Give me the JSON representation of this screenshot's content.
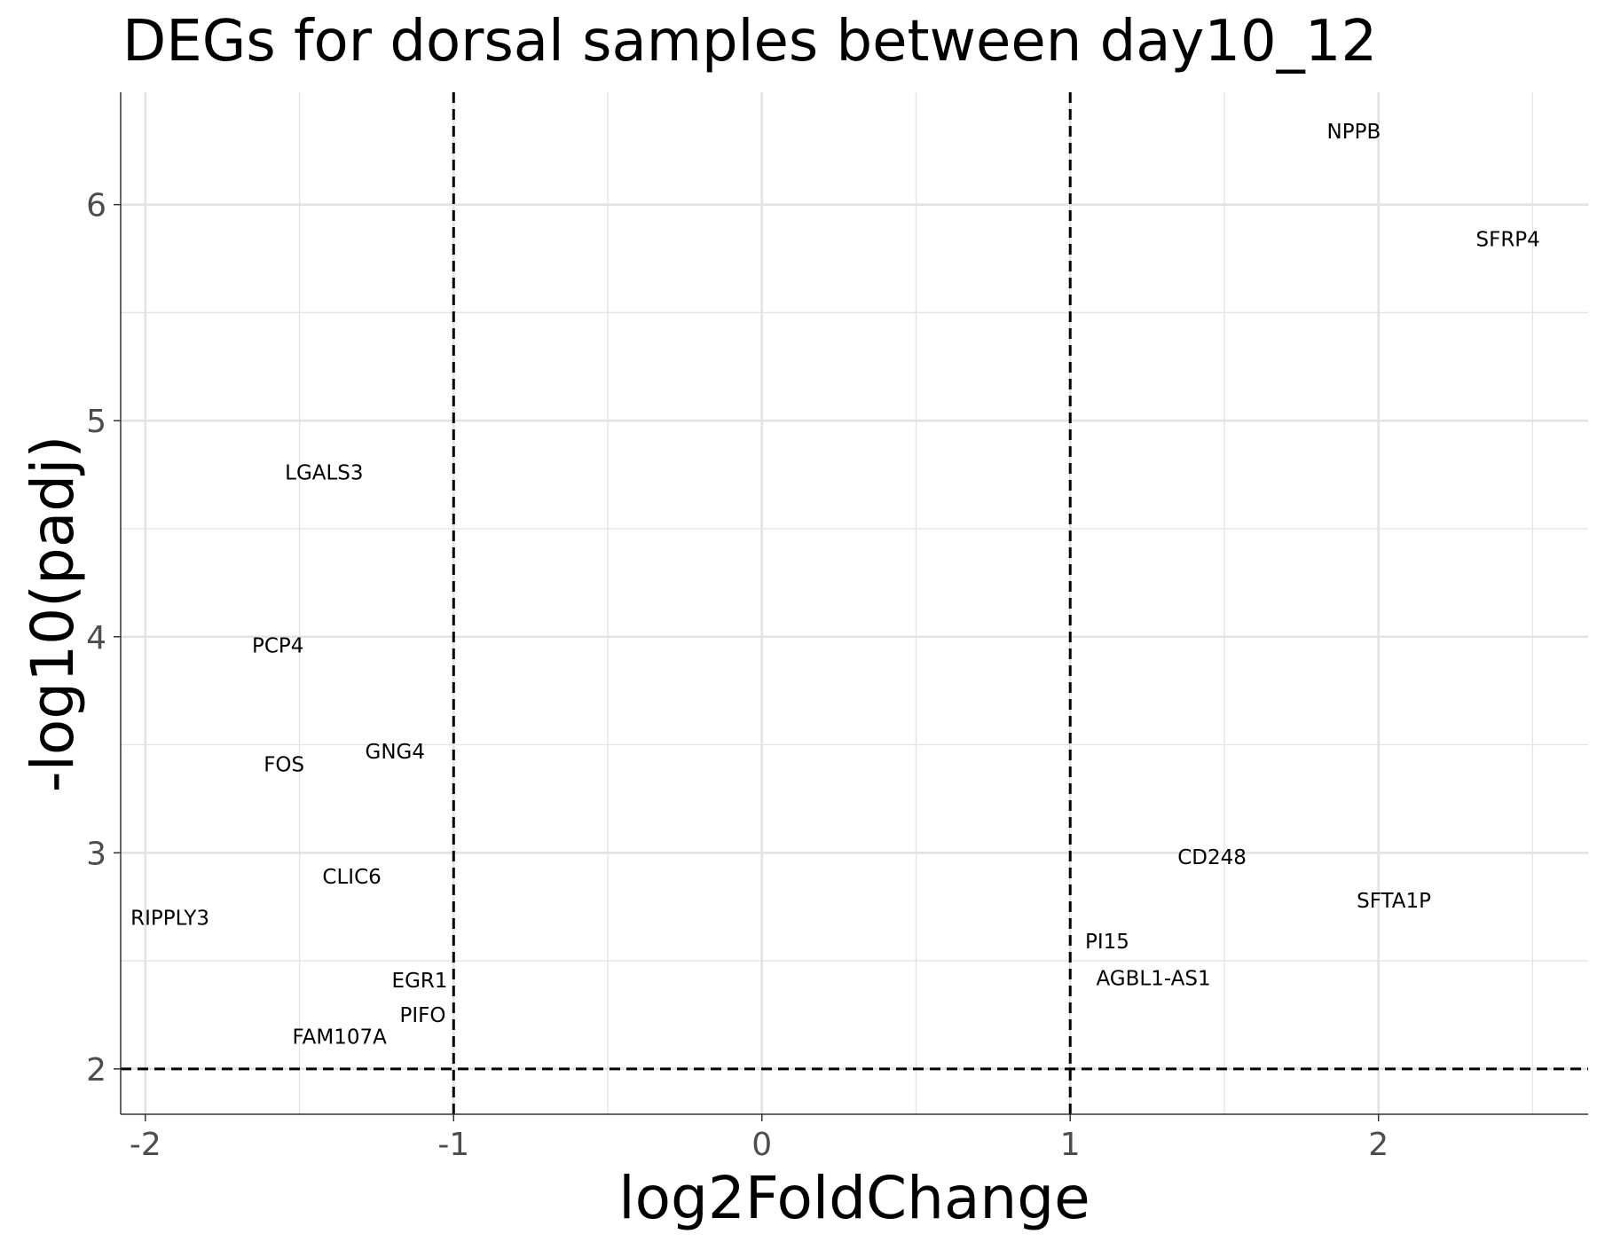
{
  "chart_data": {
    "type": "scatter",
    "title": "DEGs for dorsal samples between day10_12",
    "xlabel": "log2FoldChange",
    "ylabel": "-log10(padj)",
    "xlim": [
      -2.08,
      2.68
    ],
    "ylim": [
      1.79,
      6.52
    ],
    "x_ticks": [
      -2,
      -1,
      0,
      1,
      2
    ],
    "x_tick_labels": [
      "-2",
      "-1",
      "0",
      "1",
      "2"
    ],
    "y_ticks": [
      2,
      3,
      4,
      5,
      6
    ],
    "y_tick_labels": [
      "2",
      "3",
      "4",
      "5",
      "6"
    ],
    "x_minor_ticks": [
      -1.5,
      -0.5,
      0.5,
      1.5,
      2.5
    ],
    "y_minor_ticks": [
      2.5,
      3.5,
      4.5,
      5.5
    ],
    "grid": true,
    "reference_lines": {
      "vertical": [
        -1,
        1
      ],
      "horizontal": [
        2
      ]
    },
    "points": [
      {
        "label": "NPPB",
        "x": 1.92,
        "y": 6.34
      },
      {
        "label": "SFRP4",
        "x": 2.42,
        "y": 5.84
      },
      {
        "label": "LGALS3",
        "x": -1.42,
        "y": 4.76
      },
      {
        "label": "PCP4",
        "x": -1.57,
        "y": 3.96
      },
      {
        "label": "GNG4",
        "x": -1.19,
        "y": 3.47
      },
      {
        "label": "FOS",
        "x": -1.55,
        "y": 3.41
      },
      {
        "label": "CD248",
        "x": 1.46,
        "y": 2.98
      },
      {
        "label": "CLIC6",
        "x": -1.33,
        "y": 2.89
      },
      {
        "label": "SFTA1P",
        "x": 2.05,
        "y": 2.78
      },
      {
        "label": "RIPPLY3",
        "x": -1.92,
        "y": 2.7
      },
      {
        "label": "PI15",
        "x": 1.12,
        "y": 2.59
      },
      {
        "label": "AGBL1-AS1",
        "x": 1.27,
        "y": 2.42
      },
      {
        "label": "EGR1",
        "x": -1.11,
        "y": 2.41
      },
      {
        "label": "PIFO",
        "x": -1.1,
        "y": 2.25
      },
      {
        "label": "FAM107A",
        "x": -1.37,
        "y": 2.15
      }
    ],
    "colors": {
      "axis": "#333333",
      "tick_label": "#4d4d4d",
      "grid": "#e3e3e3",
      "text": "#000000"
    }
  }
}
